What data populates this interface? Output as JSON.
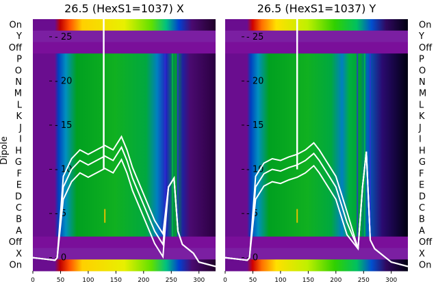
{
  "chart_data": [
    {
      "type": "heatmap",
      "title": "26.5 (HexS1=1037) X",
      "ylabel": "Dipole",
      "xticks": [
        0,
        50,
        100,
        150,
        200,
        250,
        300
      ],
      "xlim": [
        0,
        330
      ],
      "row_labels": [
        "On",
        "Y",
        "Off",
        "P",
        "O",
        "N",
        "M",
        "L",
        "K",
        "J",
        "I",
        "H",
        "G",
        "F",
        "E",
        "D",
        "C",
        "B",
        "A",
        "Off",
        "X",
        "On"
      ],
      "overlay_yticks": [
        0,
        5,
        10,
        15,
        20,
        25
      ],
      "overlay_ylim": [
        -1.5,
        27
      ]
    },
    {
      "type": "heatmap",
      "title": "26.5 (HexS1=1037) Y",
      "xticks": [
        0,
        50,
        100,
        150,
        200,
        250,
        300
      ],
      "xlim": [
        0,
        330
      ],
      "row_labels": [
        "On",
        "Y",
        "Off",
        "P",
        "O",
        "N",
        "M",
        "L",
        "K",
        "J",
        "I",
        "H",
        "G",
        "F",
        "E",
        "D",
        "C",
        "B",
        "A",
        "Off",
        "X",
        "On"
      ],
      "overlay_yticks": [
        0,
        5,
        10,
        15,
        20,
        25
      ],
      "overlay_ylim": [
        -1.5,
        27
      ]
    }
  ],
  "colors": {
    "off_row": "#7a0f9a",
    "background": "#7b1fa2",
    "trace": "#ffffff"
  }
}
